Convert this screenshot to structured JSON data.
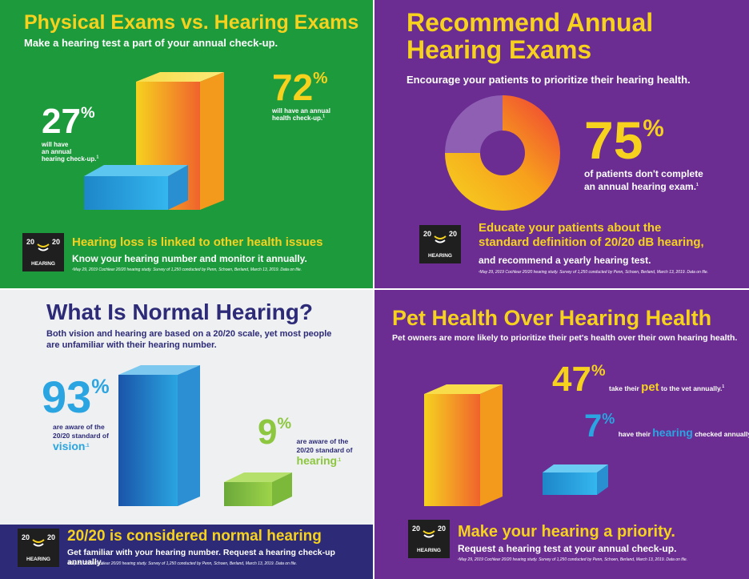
{
  "panel1": {
    "title": "Physical Exams vs. Hearing Exams",
    "subtitle": "Make a hearing test a part of your annual check-up.",
    "stat_small_value": "27",
    "stat_small_pct": "%",
    "stat_small_text_1": "will have",
    "stat_small_text_2": "an annual",
    "stat_small_text_3": "hearing check-up.",
    "stat_small_footnote": "1",
    "stat_large_value": "72",
    "stat_large_pct": "%",
    "stat_large_text_1": "will have an annual",
    "stat_large_text_2": "health check-up.",
    "stat_large_footnote": "1",
    "headline": "Hearing loss is linked to other health issues",
    "tagline": "Know your hearing number and monitor it annually.",
    "footnote": "¹May 29, 2019 Cochlear 20/20 hearing study. Survey of 1,250 conducted by Penn, Schoen, Berland, March 13, 2019. Data on file.",
    "hearing_pct": 27,
    "physical_pct": 72
  },
  "panel2": {
    "title_line1": "Recommend Annual",
    "title_line2": "Hearing Exams",
    "subtitle": "Encourage your patients to prioritize their hearing health.",
    "stat_value": "75",
    "stat_pct": "%",
    "stat_text_1": "of patients don't complete",
    "stat_text_2": "an annual hearing exam.",
    "stat_footnote": "1",
    "headline_1": "Educate your patients about the",
    "headline_2": "standard definition of 20/20 dB hearing,",
    "tagline": "and recommend a yearly hearing test.",
    "footnote": "¹May 29, 2019 Cochlear 20/20 hearing study. Survey of 1,250 conducted by Penn, Schoen, Berland, March 13, 2019. Data on file.",
    "donut_pct": 75
  },
  "panel3": {
    "title": "What Is Normal Hearing?",
    "subtitle_1": "Both vision and hearing are based on a 20/20 scale, yet most people",
    "subtitle_2": "are unfamiliar with their hearing number.",
    "stat_vision_value": "93",
    "stat_vision_pct": "%",
    "stat_vision_text_1": "are aware of the",
    "stat_vision_text_2": "20/20 standard of",
    "stat_vision_word": "vision",
    "stat_vision_footnote": ".1",
    "stat_hearing_value": "9",
    "stat_hearing_pct": "%",
    "stat_hearing_text_1": "are aware of the",
    "stat_hearing_text_2": "20/20 standard of",
    "stat_hearing_word": "hearing",
    "stat_hearing_footnote": ".1",
    "headline": "20/20 is considered normal hearing",
    "tagline": "Get familiar with your hearing number. Request a hearing check-up annually.",
    "footnote": "¹May 29, 2019 Cochlear 20/20 hearing study. Survey of 1,250 conducted by Penn, Schoen, Berland, March 13, 2019. Data on file.",
    "vision_pct": 93,
    "hearing_pct": 9
  },
  "panel4": {
    "title": "Pet Health Over Hearing Health",
    "subtitle": "Pet owners are more likely to prioritize their pet's health over their own hearing health.",
    "stat_pet_value": "47",
    "stat_pet_pct": "%",
    "stat_pet_text_1": "take their",
    "stat_pet_word": "pet",
    "stat_pet_text_2": "to the vet annually.",
    "stat_pet_footnote": "1",
    "stat_hearing_value": "7",
    "stat_hearing_pct": "%",
    "stat_hearing_text_1": "have their",
    "stat_hearing_word": "hearing",
    "stat_hearing_text_2": "checked annually.",
    "stat_hearing_footnote": "1",
    "headline": "Make your hearing a priority.",
    "tagline": "Request a hearing test at your annual check-up.",
    "footnote": "¹May 29, 2019 Cochlear 20/20 hearing study. Survey of 1,250 conducted by Penn, Schoen, Berland, March 13, 2019. Data on file.",
    "pet_pct": 47,
    "hearing_pct": 7
  },
  "logo": {
    "left": "20",
    "right": "20",
    "word": "HEARING"
  },
  "colors": {
    "green": "#1c9a3c",
    "purple": "#6b2d92",
    "light": "#eef0f1",
    "navy_band": "#2d2b78",
    "yellow": "#f6d21f",
    "orange": "#f2871e",
    "blue": "#2aa5e2",
    "lime": "#8dc63f",
    "navy_text": "#2d2b78"
  }
}
